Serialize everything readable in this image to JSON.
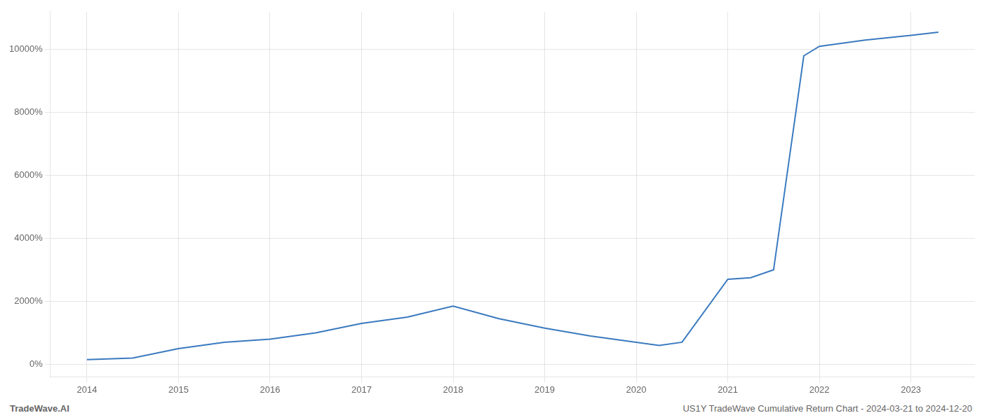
{
  "chart_data": {
    "type": "line",
    "annotations": [
      "TradeWave.AI",
      "US1Y TradeWave Cumulative Return Chart - 2024-03-21 to 2024-12-20"
    ],
    "x": [
      2014.0,
      2014.5,
      2015.0,
      2015.5,
      2016.0,
      2016.5,
      2017.0,
      2017.5,
      2018.0,
      2018.5,
      2019.0,
      2019.5,
      2020.0,
      2020.25,
      2020.5,
      2021.0,
      2021.25,
      2021.5,
      2021.83,
      2022.0,
      2022.5,
      2023.0,
      2023.3
    ],
    "values": [
      150,
      200,
      500,
      700,
      800,
      1000,
      1300,
      1500,
      1850,
      1450,
      1150,
      900,
      700,
      600,
      700,
      2700,
      2750,
      3000,
      9800,
      10100,
      10300,
      10450,
      10550
    ],
    "color": "#3a7abf",
    "xlim": [
      2013.6,
      2023.7
    ],
    "xticks": [
      2014,
      2015,
      2016,
      2017,
      2018,
      2019,
      2020,
      2021,
      2022,
      2023
    ],
    "ylim": [
      -400,
      11200
    ],
    "yticks": [
      {
        "value": 0,
        "label": "0%"
      },
      {
        "value": 2000,
        "label": "2000%"
      },
      {
        "value": 4000,
        "label": "4000%"
      },
      {
        "value": 6000,
        "label": "6000%"
      },
      {
        "value": 8000,
        "label": "8000%"
      },
      {
        "value": 10000,
        "label": "10000%"
      }
    ],
    "grid": true
  }
}
